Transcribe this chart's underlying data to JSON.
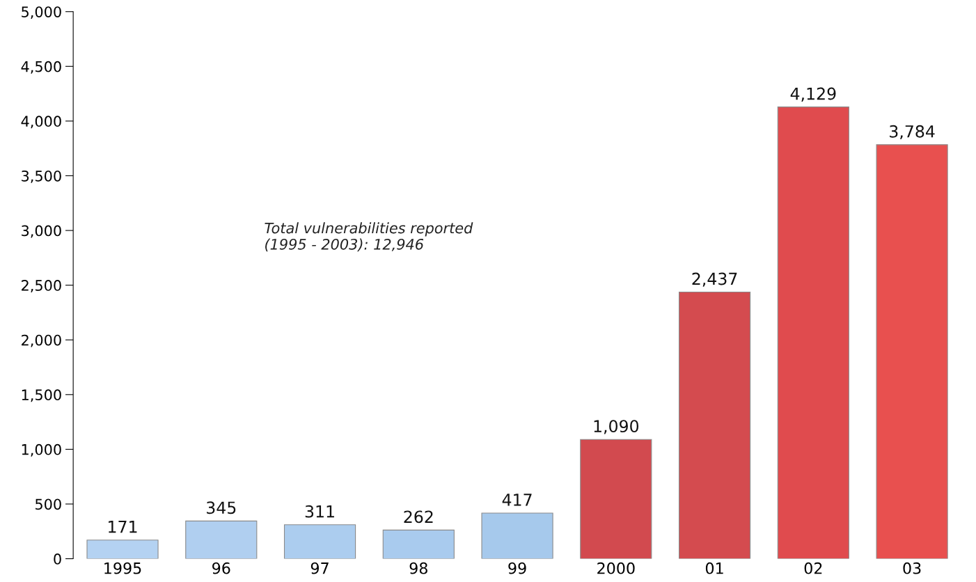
{
  "chart_data": {
    "type": "bar",
    "categories": [
      "1995",
      "96",
      "97",
      "98",
      "99",
      "2000",
      "01",
      "02",
      "03"
    ],
    "values": [
      171,
      345,
      311,
      262,
      417,
      1090,
      2437,
      4129,
      3784
    ],
    "colors": [
      "#b4d2f2",
      "#b0cff0",
      "#accdef",
      "#a9cbee",
      "#a6c9ec",
      "#d24a4f",
      "#d44b4f",
      "#e04b4e",
      "#e8504f"
    ],
    "value_labels": [
      "171",
      "345",
      "311",
      "262",
      "417",
      "1,090",
      "2,437",
      "4,129",
      "3,784"
    ],
    "ylim": [
      0,
      5000
    ],
    "yticks": [
      0,
      500,
      {
        "value": 1000,
        "label": "1,000"
      },
      {
        "value": 1500,
        "label": "1,500"
      },
      {
        "value": 2000,
        "label": "2,000"
      },
      {
        "value": 2500,
        "label": "2,500"
      },
      {
        "value": 3000,
        "label": "3,000"
      },
      {
        "value": 3500,
        "label": "3,500"
      },
      {
        "value": 4000,
        "label": "4,000"
      },
      {
        "value": 4500,
        "label": "4,500"
      },
      {
        "value": 5000,
        "label": "5,000"
      }
    ],
    "annotations": [
      "Total vulnerabilities reported\n(1995 - 2003): 12,946"
    ],
    "grid": false,
    "legend": false
  }
}
